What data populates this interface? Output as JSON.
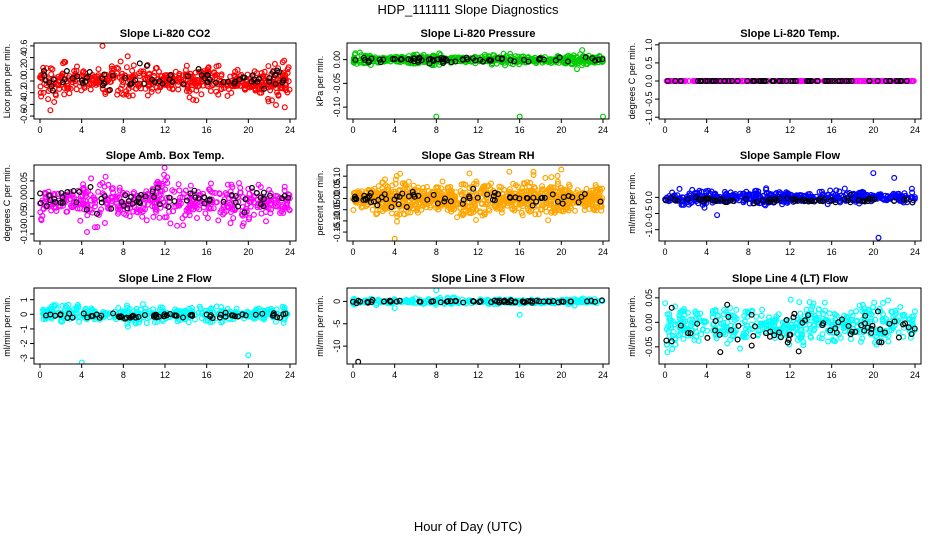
{
  "page": {
    "title": "HDP_111111  Slope Diagnostics",
    "xlabel": "Hour of Day (UTC)"
  },
  "chart_data": [
    {
      "type": "scatter",
      "title": "Slope Li-820 CO2",
      "ylabel": "Licor ppm per min.",
      "xlim": [
        0,
        24
      ],
      "xticks": [
        0,
        4,
        8,
        12,
        16,
        20,
        24
      ],
      "ylim": [
        -0.65,
        0.65
      ],
      "yticks": [
        -0.6,
        -0.4,
        -0.2,
        0.0,
        0.2,
        0.4,
        0.6
      ],
      "ytick_labels": [
        "-0.6",
        "-0.4",
        "-0.2",
        "0.0",
        "0.2",
        "0.4",
        "0.6"
      ],
      "grid": false,
      "series": [
        {
          "color": "#ff0000",
          "n": 520,
          "center": 0.0,
          "spread": 0.16,
          "outliers": [
            [
              6,
              0.6
            ],
            [
              1,
              -0.5
            ],
            [
              23.5,
              -0.45
            ]
          ]
        },
        {
          "color": "#000000",
          "n": 70,
          "center": 0.02,
          "spread": 0.12
        }
      ]
    },
    {
      "type": "scatter",
      "title": "Slope Li-820 Pressure",
      "ylabel": "kPa per min.",
      "xlim": [
        0,
        24
      ],
      "xticks": [
        0,
        4,
        8,
        12,
        16,
        20,
        24
      ],
      "ylim": [
        -0.125,
        0.035
      ],
      "yticks": [
        -0.1,
        -0.05,
        0.0
      ],
      "ytick_labels": [
        "-0.10",
        "-0.05",
        "0.00"
      ],
      "grid": false,
      "series": [
        {
          "color": "#00cc00",
          "n": 480,
          "center": 0.0,
          "spread": 0.006,
          "outliers": [
            [
              8,
              -0.12
            ],
            [
              16,
              -0.12
            ],
            [
              24,
              -0.12
            ],
            [
              22,
              0.02
            ],
            [
              21.5,
              -0.02
            ]
          ]
        },
        {
          "color": "#000000",
          "n": 70,
          "center": 0.0,
          "spread": 0.004
        }
      ]
    },
    {
      "type": "scatter",
      "title": "Slope Li-820 Temp.",
      "ylabel": "degrees C per min.",
      "xlim": [
        0,
        24
      ],
      "xticks": [
        0,
        4,
        8,
        12,
        16,
        20,
        24
      ],
      "ylim": [
        -1.05,
        1.05
      ],
      "yticks": [
        -1.0,
        -0.5,
        0.0,
        0.5,
        1.0
      ],
      "ytick_labels": [
        "-1.0",
        "-0.5",
        "0.0",
        "0.5",
        "1.0"
      ],
      "grid": false,
      "series": [
        {
          "color": "#ff00ff",
          "n": 300,
          "center": 0.0,
          "spread": 0.0
        },
        {
          "color": "#000000",
          "n": 70,
          "center": 0.0,
          "spread": 0.0
        }
      ]
    },
    {
      "type": "scatter",
      "title": "Slope Amb. Box Temp.",
      "ylabel": "degrees C per min.",
      "xlim": [
        0,
        24
      ],
      "xticks": [
        0,
        4,
        8,
        12,
        16,
        20,
        24
      ],
      "ylim": [
        -0.12,
        0.095
      ],
      "yticks": [
        -0.1,
        -0.05,
        0.0,
        0.05
      ],
      "ytick_labels": [
        "-0.10",
        "-0.05",
        "0.00",
        "0.05"
      ],
      "grid": false,
      "series": [
        {
          "color": "#ff00ff",
          "n": 480,
          "center": -0.01,
          "spread": 0.035
        },
        {
          "color": "#000000",
          "n": 70,
          "center": 0.0,
          "spread": 0.02
        }
      ]
    },
    {
      "type": "scatter",
      "title": "Slope Gas Stream RH",
      "ylabel": "percent per min.",
      "xlim": [
        0,
        24
      ],
      "xticks": [
        0,
        4,
        8,
        12,
        16,
        20,
        24
      ],
      "ylim": [
        -0.19,
        0.15
      ],
      "yticks": [
        -0.15,
        -0.1,
        -0.05,
        0.0,
        0.05,
        0.1
      ],
      "ytick_labels": [
        "-0.15",
        "-0.10",
        "-0.05",
        "0.00",
        "0.05",
        "0.10"
      ],
      "grid": false,
      "series": [
        {
          "color": "#ffa500",
          "n": 900,
          "center": 0.0,
          "spread": 0.045,
          "outliers": [
            [
              4,
              -0.18
            ],
            [
              20,
              0.13
            ],
            [
              15,
              0.12
            ]
          ]
        },
        {
          "color": "#000000",
          "n": 70,
          "center": 0.0,
          "spread": 0.025
        }
      ]
    },
    {
      "type": "scatter",
      "title": "Slope Sample Flow",
      "ylabel": "ml/min per min.",
      "xlim": [
        0,
        24
      ],
      "xticks": [
        0,
        4,
        8,
        12,
        16,
        20,
        24
      ],
      "ylim": [
        -1.35,
        1.0
      ],
      "yticks": [
        -1.0,
        -0.5,
        0.0
      ],
      "ytick_labels": [
        "-1.0",
        "-0.5",
        "0.0"
      ],
      "grid": false,
      "series": [
        {
          "color": "#0000ff",
          "n": 520,
          "center": 0.0,
          "spread": 0.12,
          "outliers": [
            [
              20.5,
              -1.25
            ],
            [
              20,
              0.75
            ],
            [
              22,
              0.6
            ],
            [
              5,
              -0.55
            ]
          ]
        },
        {
          "color": "#000000",
          "n": 70,
          "center": -0.1,
          "spread": 0.06
        }
      ]
    },
    {
      "type": "scatter",
      "title": "Slope Line 2 Flow",
      "ylabel": "ml/min per min.",
      "xlim": [
        0,
        24
      ],
      "xticks": [
        0,
        4,
        8,
        12,
        16,
        20,
        24
      ],
      "ylim": [
        -3.4,
        1.8
      ],
      "yticks": [
        -3,
        -2,
        -1,
        0,
        1
      ],
      "ytick_labels": [
        "-3",
        "-2",
        "-1",
        "0",
        "1"
      ],
      "grid": false,
      "series": [
        {
          "color": "#00ffff",
          "n": 380,
          "center": 0.0,
          "spread": 0.35,
          "outliers": [
            [
              4,
              -3.3
            ],
            [
              20,
              -2.8
            ]
          ]
        },
        {
          "color": "#000000",
          "n": 70,
          "center": -0.1,
          "spread": 0.15
        }
      ]
    },
    {
      "type": "scatter",
      "title": "Slope Line 3 Flow",
      "ylabel": "ml/min per min.",
      "xlim": [
        0,
        24
      ],
      "xticks": [
        0,
        4,
        8,
        12,
        16,
        20,
        24
      ],
      "ylim": [
        -14,
        3
      ],
      "yticks": [
        -10,
        -5,
        0
      ],
      "ytick_labels": [
        "-10",
        "-5",
        "0"
      ],
      "grid": false,
      "series": [
        {
          "color": "#00ffff",
          "n": 300,
          "center": 0.0,
          "spread": 0.4,
          "outliers": [
            [
              8,
              2.5
            ],
            [
              16,
              -3
            ],
            [
              4,
              -1.5
            ]
          ]
        },
        {
          "color": "#000000",
          "n": 70,
          "center": 0.0,
          "spread": 0.2,
          "outliers": [
            [
              0.5,
              -13.5
            ]
          ]
        }
      ]
    },
    {
      "type": "scatter",
      "title": "Slope Line 4 (LT) Flow",
      "ylabel": "ml/min per min.",
      "xlim": [
        0,
        24
      ],
      "xticks": [
        0,
        4,
        8,
        12,
        16,
        20,
        24
      ],
      "ylim": [
        -0.085,
        0.07
      ],
      "yticks": [
        -0.05,
        0.0,
        0.05
      ],
      "ytick_labels": [
        "-0.05",
        "0.00",
        "0.05"
      ],
      "grid": false,
      "series": [
        {
          "color": "#00ffff",
          "n": 480,
          "center": -0.005,
          "spread": 0.025
        },
        {
          "color": "#000000",
          "n": 70,
          "center": -0.01,
          "spread": 0.025
        }
      ]
    }
  ]
}
